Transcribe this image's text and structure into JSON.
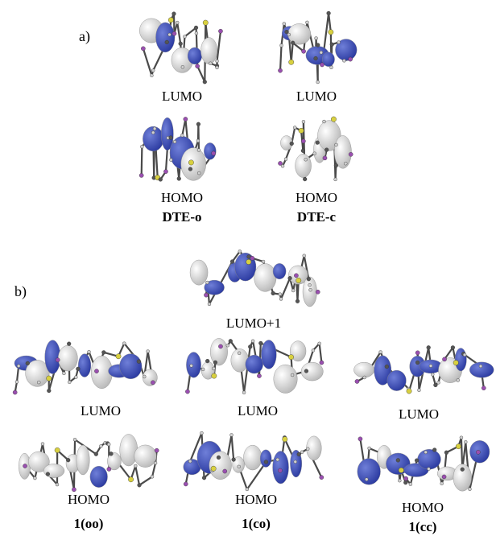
{
  "panel_a": {
    "label": "a)",
    "orbitals": [
      {
        "caption": "LUMO"
      },
      {
        "caption": "LUMO"
      },
      {
        "caption": "HOMO"
      },
      {
        "caption": "HOMO"
      }
    ],
    "compounds": [
      "DTE-o",
      "DTE-c"
    ]
  },
  "panel_b": {
    "label": "b)",
    "top_orbital": {
      "caption": "LUMO+1"
    },
    "orbitals": [
      {
        "caption": "LUMO"
      },
      {
        "caption": "LUMO"
      },
      {
        "caption": "LUMO"
      },
      {
        "caption": "HOMO"
      },
      {
        "caption": "HOMO"
      },
      {
        "caption": "HOMO"
      }
    ],
    "compounds": [
      "1(oo)",
      "1(co)",
      "1(cc)"
    ]
  },
  "colors": {
    "lobe_blue": "#2b3aa0",
    "lobe_white": "#f2f2f2",
    "bond": "#4a4a4a",
    "fluorine": "#9a4fb0",
    "sulfur": "#d8d040"
  }
}
